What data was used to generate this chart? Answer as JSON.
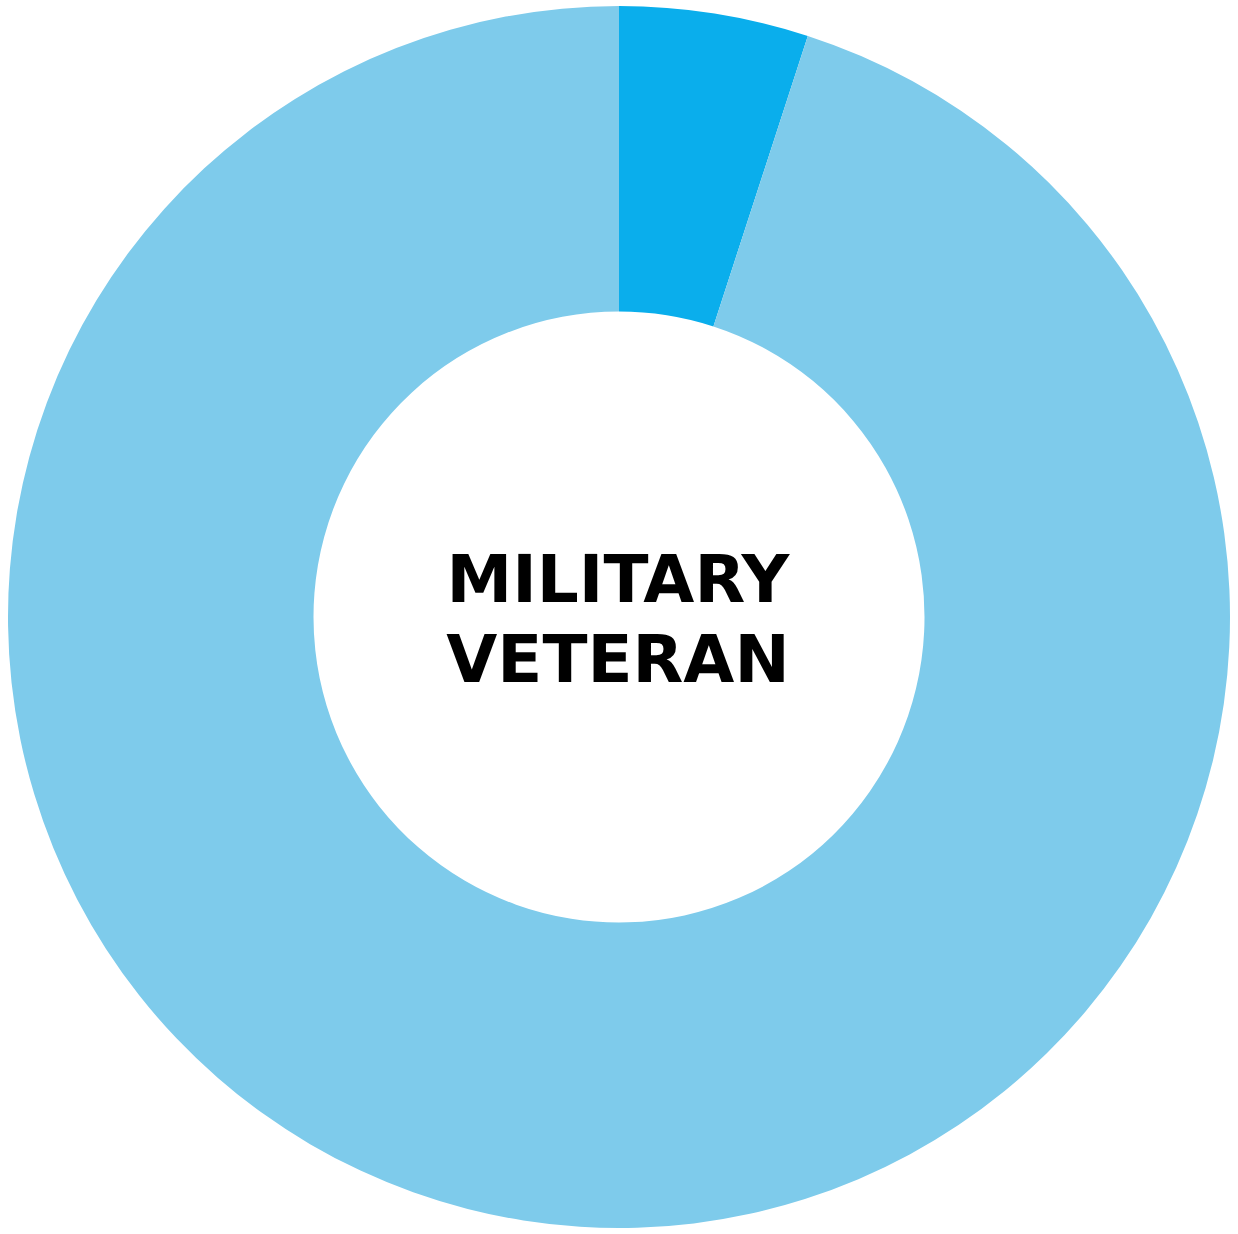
{
  "chart_data": {
    "type": "donut",
    "title": "MILITARY VETERAN",
    "categories": [
      null,
      null
    ],
    "values": [
      5,
      95
    ],
    "colors": [
      "#0aaeec",
      "#7ecbeb"
    ],
    "legend": false
  }
}
